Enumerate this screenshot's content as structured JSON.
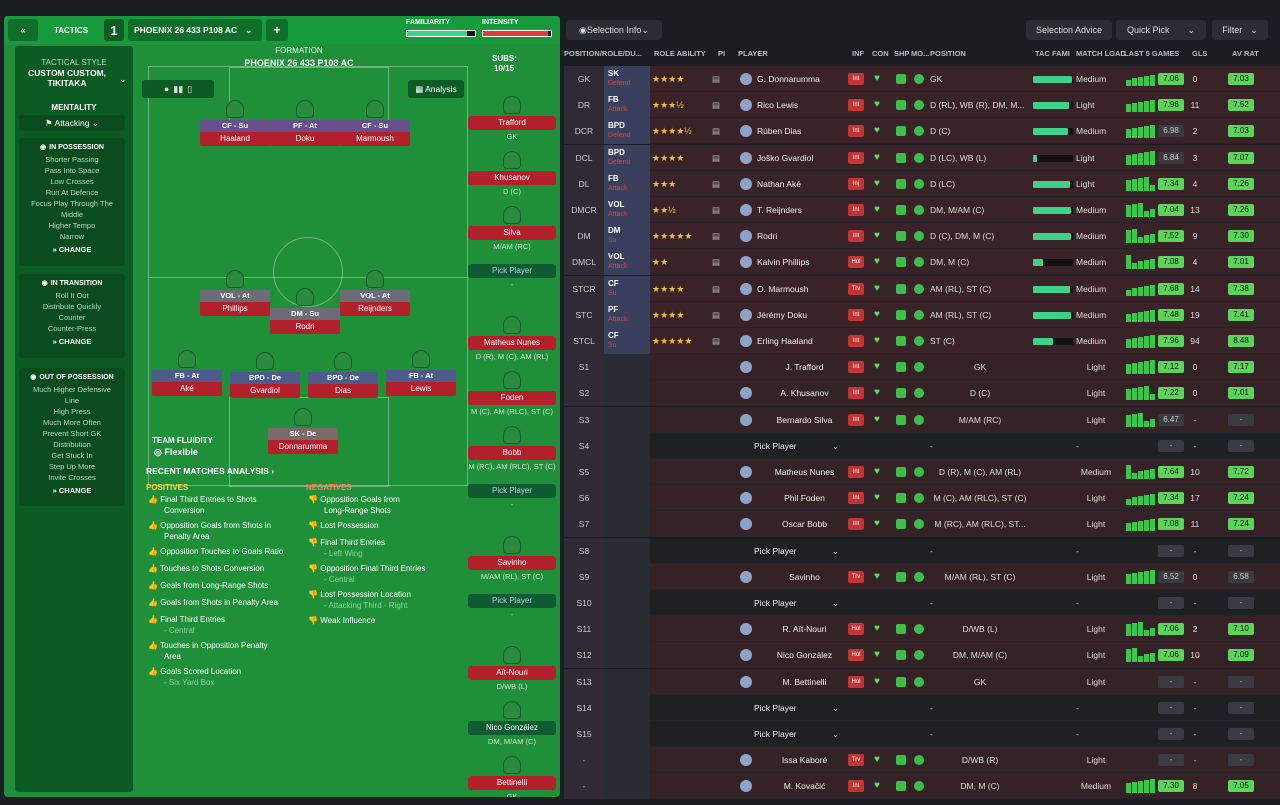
{
  "topbar": {
    "back": "«",
    "tactics_label": "TACTICS",
    "slot": "1",
    "tactic_name": "PHOENIX 26 433 P108 AC",
    "add": "+",
    "familiarity": "FAMILIARITY",
    "intensity": "INTENSITY"
  },
  "side": {
    "style_label": "TACTICAL STYLE",
    "style_value": "CUSTOM CUSTOM, TIKITAKA",
    "mentality_label": "MENTALITY",
    "mentality_value": "Attacking",
    "in_possession": {
      "title": "IN POSSESSION",
      "items": [
        "Shorter Passing",
        "Pass Into Space",
        "Low Crosses",
        "Run At Defence",
        "Focus Play Through The",
        "Middle",
        "Higher Tempo",
        "Narrow"
      ],
      "change": "CHANGE"
    },
    "in_transition": {
      "title": "IN TRANSITION",
      "items": [
        "Roll It Out",
        "Distribute Quickly",
        "Counter",
        "Counter-Press"
      ],
      "change": "CHANGE"
    },
    "out_of_possession": {
      "title": "OUT OF POSSESSION",
      "items": [
        "Much Higher Defensive",
        "Line",
        "High Press",
        "Much More Often",
        "Prevent Short GK",
        "Distribution",
        "Get Stuck In",
        "Step Up More",
        "Invite Crosses"
      ],
      "change": "CHANGE"
    }
  },
  "formation": {
    "label": "FORMATION",
    "name": "PHOENIX 26 433 P108 AC",
    "analysis": "Analysis",
    "subs_label": "SUBS:",
    "subs_count": "10/15"
  },
  "players": [
    {
      "pos": "CF - Su",
      "name": "Haaland"
    },
    {
      "pos": "PF - At",
      "name": "Doku"
    },
    {
      "pos": "CF - Su",
      "name": "Marmoush"
    },
    {
      "pos": "VOL - At",
      "name": "Phillips"
    },
    {
      "pos": "DM - Su",
      "name": "Rodri"
    },
    {
      "pos": "VOL - At",
      "name": "Reijnders"
    },
    {
      "pos": "FB - At",
      "name": "Aké"
    },
    {
      "pos": "BPD - De",
      "name": "Gvardiol"
    },
    {
      "pos": "BPD - De",
      "name": "Dias"
    },
    {
      "pos": "FB - At",
      "name": "Lewis"
    },
    {
      "pos": "SK - De",
      "name": "Donnarumma"
    }
  ],
  "team_fluidity": {
    "label": "TEAM FLUIDITY",
    "value": "Flexible"
  },
  "subs": [
    {
      "name": "Trafford",
      "pos": "GK"
    },
    {
      "name": "Khusanov",
      "pos": "D (C)"
    },
    {
      "name": "Silva",
      "pos": "M/AM (RC)"
    },
    {
      "name": "Pick Player",
      "pos": "-"
    },
    {
      "name": "Matheus Nunes",
      "pos": "D (R), M (C), AM (RL)"
    },
    {
      "name": "Foden",
      "pos": "M (C), AM (RLC), ST (C)"
    },
    {
      "name": "Bobb",
      "pos": "M (RC), AM (RLC), ST (C)"
    },
    {
      "name": "Pick Player",
      "pos": "-"
    },
    {
      "name": "Savinho",
      "pos": "M/AM (RL), ST (C)"
    },
    {
      "name": "Pick Player",
      "pos": "-"
    },
    {
      "name": "Aït-Nouri",
      "pos": "D/WB (L)"
    },
    {
      "name": "Nico González",
      "pos": "DM, M/AM (C)"
    },
    {
      "name": "Bettinelli",
      "pos": "GK"
    }
  ],
  "analysis": {
    "title": "RECENT MATCHES ANALYSIS ›",
    "positives_label": "POSITIVES",
    "positives": [
      "Final Third Entries to Shots",
      "Conversion",
      "Opposition Goals from Shots in",
      "Penalty Area",
      "Opposition Touches to Goals Ratio",
      "Touches to Shots Conversion",
      "Goals from Long-Range Shots",
      "Goals from Shots in Penalty Area",
      "Final Third Entries",
      "- Central",
      "Touches in Opposition Penalty",
      "Area",
      "Goals Scored Location",
      "- Six Yard Box"
    ],
    "negatives_label": "NEGATIVES",
    "negatives": [
      "Opposition Goals from",
      "Long-Range Shots",
      "Lost Possession",
      "Final Third Entries",
      "- Left Wing",
      "Opposition Final Third Entries",
      "- Central",
      "Lost Possession Location",
      "- Attacking Third - Right",
      "Weak Influence"
    ]
  },
  "right": {
    "selection_info": "Selection Info",
    "selection_advice": "Selection Advice",
    "quick_pick": "Quick Pick",
    "filter": "Filter",
    "headers": [
      "POSITION/ROLE/DU...",
      "ROLE ABILITY",
      "PI",
      "PLAYER",
      "INF",
      "CON",
      "SHP",
      "MO...",
      "POSITION",
      "TAC FAMI",
      "MATCH LOAD",
      "LAST 5 GAMES",
      "GLS",
      "AV RAT"
    ],
    "rows": [
      {
        "slot": "GK",
        "role": "SK",
        "duty": "Defend",
        "stars": "★★★★",
        "player": "G. Donnarumma",
        "inf": "Int",
        "pos": "GK",
        "load": "Medium",
        "last": "7.06",
        "gls": "0",
        "av": "7.03"
      },
      {
        "slot": "DR",
        "role": "FB",
        "duty": "Attack",
        "stars": "★★★½",
        "player": "Rico Lewis",
        "inf": "Int",
        "pos": "D (RL), WB (R), DM, M...",
        "load": "Light",
        "last": "7.96",
        "gls": "11",
        "av": "7.52"
      },
      {
        "slot": "DCR",
        "role": "BPD",
        "duty": "Defend",
        "stars": "★★★★½",
        "player": "Rúben Dias",
        "inf": "Int",
        "pos": "D (C)",
        "load": "Medium",
        "last": "6.98",
        "gls": "2",
        "av": "7.03"
      },
      {
        "slot": "DCL",
        "role": "BPD",
        "duty": "Defend",
        "stars": "★★★★",
        "player": "Joško Gvardiol",
        "inf": "Int",
        "pos": "D (LC), WB (L)",
        "load": "Light",
        "last": "6.84",
        "gls": "3",
        "av": "7.07"
      },
      {
        "slot": "DL",
        "role": "FB",
        "duty": "Attack",
        "stars": "★★★",
        "player": "Nathan Aké",
        "inf": "Inj",
        "pos": "D (LC)",
        "load": "Light",
        "last": "7.34",
        "gls": "4",
        "av": "7.26"
      },
      {
        "slot": "DMCR",
        "role": "VOL",
        "duty": "Attack",
        "stars": "★★½",
        "player": "T. Reijnders",
        "inf": "Int",
        "pos": "DM, M/AM (C)",
        "load": "Medium",
        "last": "7.04",
        "gls": "13",
        "av": "7.26"
      },
      {
        "slot": "DM",
        "role": "DM",
        "duty": "Su",
        "stars": "★★★★★",
        "player": "Rodri",
        "inf": "Int",
        "pos": "D (C), DM, M (C)",
        "load": "Medium",
        "last": "7.52",
        "gls": "9",
        "av": "7.30"
      },
      {
        "slot": "DMCL",
        "role": "VOL",
        "duty": "Attack",
        "stars": "★★",
        "player": "Kalvin Phillips",
        "inf": "Hol",
        "pos": "DM, M (C)",
        "load": "Medium",
        "last": "7.08",
        "gls": "4",
        "av": "7.01"
      },
      {
        "slot": "STCR",
        "role": "CF",
        "duty": "Su",
        "stars": "★★★★",
        "player": "O. Marmoush",
        "inf": "Trv",
        "pos": "AM (RL), ST (C)",
        "load": "Medium",
        "last": "7.68",
        "gls": "14",
        "av": "7.38"
      },
      {
        "slot": "STC",
        "role": "PF",
        "duty": "Attack",
        "stars": "★★★★",
        "player": "Jérémy Doku",
        "inf": "Int",
        "pos": "AM (RL), ST (C)",
        "load": "Medium",
        "last": "7.48",
        "gls": "19",
        "av": "7.41"
      },
      {
        "slot": "STCL",
        "role": "CF",
        "duty": "Su",
        "stars": "★★★★★",
        "player": "Erling Haaland",
        "inf": "Int",
        "pos": "ST (C)",
        "load": "Medium",
        "last": "7.96",
        "gls": "94",
        "av": "8.48"
      },
      {
        "slot": "S1",
        "role": "",
        "duty": "",
        "stars": "",
        "player": "J. Trafford",
        "inf": "Int",
        "pos": "GK",
        "load": "Light",
        "last": "7.12",
        "gls": "0",
        "av": "7.17"
      },
      {
        "slot": "S2",
        "role": "",
        "duty": "",
        "stars": "",
        "player": "A. Khusanov",
        "inf": "Int",
        "pos": "D (C)",
        "load": "Light",
        "last": "7.22",
        "gls": "0",
        "av": "7.01"
      },
      {
        "slot": "S3",
        "role": "",
        "duty": "",
        "stars": "",
        "player": "Bernardo Silva",
        "inf": "Int",
        "pos": "M/AM (RC)",
        "load": "Light",
        "last": "6.47",
        "gls": "-",
        "av": "-"
      },
      {
        "slot": "S4",
        "role": "",
        "duty": "",
        "stars": "",
        "player": "Pick Player",
        "inf": "",
        "pos": "-",
        "load": "-",
        "last": "-",
        "gls": "-",
        "av": "-"
      },
      {
        "slot": "S5",
        "role": "",
        "duty": "",
        "stars": "",
        "player": "Matheus Nunes",
        "inf": "Int",
        "pos": "D (R), M (C), AM (RL)",
        "load": "Medium",
        "last": "7.64",
        "gls": "10",
        "av": "7.72"
      },
      {
        "slot": "S6",
        "role": "",
        "duty": "",
        "stars": "",
        "player": "Phil Foden",
        "inf": "Int",
        "pos": "M (C), AM (RLC), ST (C)",
        "load": "Light",
        "last": "7.34",
        "gls": "17",
        "av": "7.24"
      },
      {
        "slot": "S7",
        "role": "",
        "duty": "",
        "stars": "",
        "player": "Oscar Bobb",
        "inf": "Int",
        "pos": "M (RC), AM (RLC), ST...",
        "load": "Light",
        "last": "7.08",
        "gls": "11",
        "av": "7.24"
      },
      {
        "slot": "S8",
        "role": "",
        "duty": "",
        "stars": "",
        "player": "Pick Player",
        "inf": "",
        "pos": "-",
        "load": "-",
        "last": "-",
        "gls": "-",
        "av": "-"
      },
      {
        "slot": "S9",
        "role": "",
        "duty": "",
        "stars": "",
        "player": "Savinho",
        "inf": "Trv",
        "pos": "M/AM (RL), ST (C)",
        "load": "Light",
        "last": "6.52",
        "gls": "0",
        "av": "6.58"
      },
      {
        "slot": "S10",
        "role": "",
        "duty": "",
        "stars": "",
        "player": "Pick Player",
        "inf": "",
        "pos": "-",
        "load": "-",
        "last": "-",
        "gls": "-",
        "av": "-"
      },
      {
        "slot": "S11",
        "role": "",
        "duty": "",
        "stars": "",
        "player": "R. Aït-Nouri",
        "inf": "Hol",
        "pos": "D/WB (L)",
        "load": "Light",
        "last": "7.06",
        "gls": "2",
        "av": "7.10"
      },
      {
        "slot": "S12",
        "role": "",
        "duty": "",
        "stars": "",
        "player": "Nico González",
        "inf": "Hol",
        "pos": "DM, M/AM (C)",
        "load": "Light",
        "last": "7.06",
        "gls": "10",
        "av": "7.09"
      },
      {
        "slot": "S13",
        "role": "",
        "duty": "",
        "stars": "",
        "player": "M. Bettinelli",
        "inf": "Hol",
        "pos": "GK",
        "load": "Light",
        "last": "-",
        "gls": "-",
        "av": "-"
      },
      {
        "slot": "S14",
        "role": "",
        "duty": "",
        "stars": "",
        "player": "Pick Player",
        "inf": "",
        "pos": "-",
        "load": "-",
        "last": "-",
        "gls": "-",
        "av": "-"
      },
      {
        "slot": "S15",
        "role": "",
        "duty": "",
        "stars": "",
        "player": "Pick Player",
        "inf": "",
        "pos": "-",
        "load": "-",
        "last": "-",
        "gls": "-",
        "av": "-"
      },
      {
        "slot": "-",
        "role": "",
        "duty": "",
        "stars": "",
        "player": "Issa Kaboré",
        "inf": "Trv",
        "pos": "D/WB (R)",
        "load": "Light",
        "last": "-",
        "gls": "-",
        "av": "-"
      },
      {
        "slot": "-",
        "role": "",
        "duty": "",
        "stars": "",
        "player": "M. Kovačić",
        "inf": "Int",
        "pos": "DM, M (C)",
        "load": "Medium",
        "last": "7.30",
        "gls": "8",
        "av": "7.05"
      }
    ]
  }
}
